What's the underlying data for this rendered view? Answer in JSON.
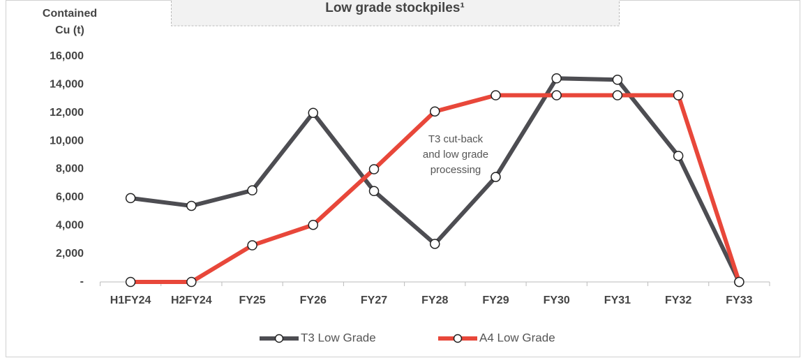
{
  "chart_data": {
    "type": "line",
    "title": "Low grade stockpiles¹",
    "ylabel": [
      "Contained",
      "Cu (t)"
    ],
    "annotation": [
      "T3 cut-back",
      "and low grade",
      "processing"
    ],
    "categories": [
      "H1FY24",
      "H2FY24",
      "FY25",
      "FY26",
      "FY27",
      "FY28",
      "FY29",
      "FY30",
      "FY31",
      "FY32",
      "FY33"
    ],
    "series": [
      {
        "name": "T3 Low Grade",
        "color": "#4d4d52",
        "values": [
          5950,
          5400,
          6500,
          12000,
          6450,
          2700,
          7450,
          14450,
          14350,
          8950,
          0
        ]
      },
      {
        "name": "A4 Low Grade",
        "color": "#e8473a",
        "values": [
          0,
          0,
          2600,
          4050,
          8000,
          12100,
          13250,
          13250,
          13250,
          13250,
          0
        ]
      }
    ],
    "ylim": [
      0,
      16000
    ],
    "yticks": [
      {
        "value": 0,
        "label": "-"
      },
      {
        "value": 2000,
        "label": "2,000"
      },
      {
        "value": 4000,
        "label": "4,000"
      },
      {
        "value": 6000,
        "label": "6,000"
      },
      {
        "value": 8000,
        "label": "8,000"
      },
      {
        "value": 10000,
        "label": "10,000"
      },
      {
        "value": 12000,
        "label": "12,000"
      },
      {
        "value": 14000,
        "label": "14,000"
      },
      {
        "value": 16000,
        "label": "16,000"
      }
    ],
    "grid": false,
    "legend": "bottom"
  }
}
